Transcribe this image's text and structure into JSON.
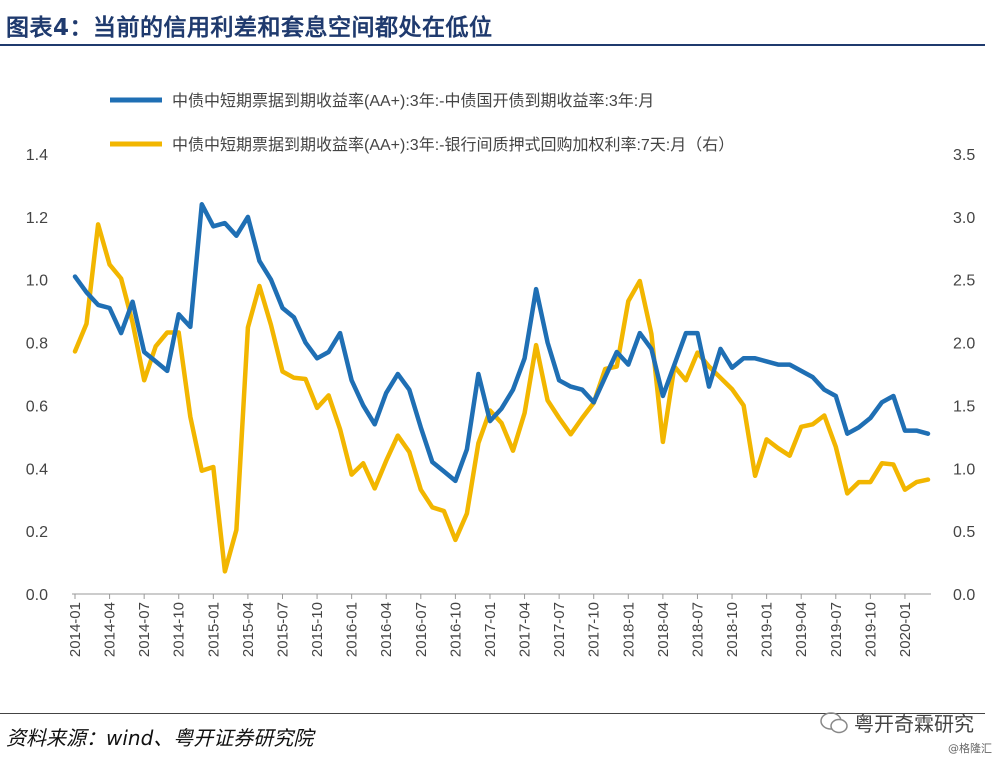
{
  "title": "图表4：当前的信用利差和套息空间都处在低位",
  "source": "资料来源：wind、粤开证券研究院",
  "watermark": "粤开奇霖研究",
  "watermark2": "@格隆汇",
  "colors": {
    "series1": "#1f6fb4",
    "series2": "#f2b600",
    "title": "#1f3a6e"
  },
  "chart_data": {
    "type": "line",
    "y_left": {
      "min": 0,
      "max": 1.4,
      "step": 0.2,
      "ticks": [
        "0.0",
        "0.2",
        "0.4",
        "0.6",
        "0.8",
        "1.0",
        "1.2",
        "1.4"
      ]
    },
    "y_right": {
      "min": 0,
      "max": 3.5,
      "step": 0.5,
      "ticks": [
        "0.0",
        "0.5",
        "1.0",
        "1.5",
        "2.0",
        "2.5",
        "3.0",
        "3.5"
      ]
    },
    "x_tick_labels": [
      "2014-01",
      "2014-04",
      "2014-07",
      "2014-10",
      "2015-01",
      "2015-04",
      "2015-07",
      "2015-10",
      "2016-01",
      "2016-04",
      "2016-07",
      "2016-10",
      "2017-01",
      "2017-04",
      "2017-07",
      "2017-10",
      "2018-01",
      "2018-04",
      "2018-07",
      "2018-10",
      "2019-01",
      "2019-04",
      "2019-07",
      "2019-10",
      "2020-01"
    ],
    "series": [
      {
        "name": "中债中短期票据到期收益率(AA+):3年:-中债国开债到期收益率:3年:月",
        "axis": "left",
        "values": [
          1.01,
          0.96,
          0.92,
          0.91,
          0.83,
          0.93,
          0.77,
          0.74,
          0.71,
          0.89,
          0.85,
          1.24,
          1.17,
          1.18,
          1.14,
          1.2,
          1.06,
          1.0,
          0.91,
          0.88,
          0.8,
          0.75,
          0.77,
          0.83,
          0.68,
          0.6,
          0.54,
          0.64,
          0.7,
          0.65,
          0.53,
          0.42,
          0.39,
          0.36,
          0.46,
          0.7,
          0.55,
          0.59,
          0.65,
          0.75,
          0.97,
          0.8,
          0.68,
          0.66,
          0.65,
          0.61,
          0.69,
          0.77,
          0.73,
          0.83,
          0.78,
          0.63,
          0.73,
          0.83,
          0.83,
          0.66,
          0.78,
          0.72,
          0.75,
          0.75,
          0.74,
          0.73,
          0.73,
          0.71,
          0.69,
          0.65,
          0.63,
          0.51,
          0.53,
          0.56,
          0.61,
          0.63,
          0.52,
          0.52,
          0.51
        ]
      },
      {
        "name": "中债中短期票据到期收益率(AA+):3年:-银行间质押式回购加权利率:7天:月（右）",
        "axis": "right",
        "values": [
          1.93,
          2.15,
          2.94,
          2.62,
          2.51,
          2.16,
          1.7,
          1.97,
          2.08,
          2.08,
          1.41,
          0.98,
          1.01,
          0.18,
          0.51,
          2.12,
          2.45,
          2.14,
          1.77,
          1.72,
          1.71,
          1.48,
          1.58,
          1.31,
          0.95,
          1.04,
          0.84,
          1.06,
          1.26,
          1.13,
          0.83,
          0.69,
          0.66,
          0.43,
          0.64,
          1.2,
          1.46,
          1.36,
          1.14,
          1.44,
          1.98,
          1.54,
          1.4,
          1.27,
          1.4,
          1.52,
          1.79,
          1.81,
          2.33,
          2.49,
          2.07,
          1.21,
          1.81,
          1.7,
          1.92,
          1.81,
          1.72,
          1.63,
          1.5,
          0.94,
          1.23,
          1.16,
          1.1,
          1.33,
          1.35,
          1.42,
          1.17,
          0.8,
          0.89,
          0.89,
          1.04,
          1.03,
          0.83,
          0.89,
          0.91
        ]
      }
    ]
  }
}
